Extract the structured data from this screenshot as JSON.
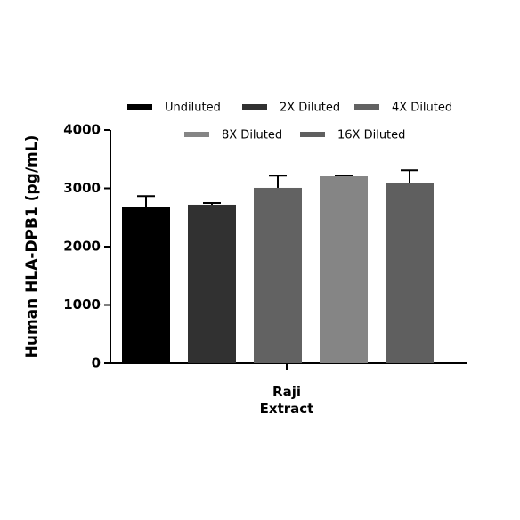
{
  "chart_data": {
    "type": "bar",
    "y_label": "Human HLA-DPB1 (pg/mL)",
    "categories": [
      "Raji\nExtract"
    ],
    "series": [
      {
        "name": "Undiluted",
        "color": "#000000",
        "values": [
          2687
        ],
        "errors": [
          180
        ]
      },
      {
        "name": "2X Diluted",
        "color": "#313131",
        "values": [
          2718
        ],
        "errors": [
          30
        ]
      },
      {
        "name": "4X Diluted",
        "color": "#626262",
        "values": [
          3008
        ],
        "errors": [
          210
        ]
      },
      {
        "name": "8X Diluted",
        "color": "#858585",
        "values": [
          3206
        ],
        "errors": [
          15
        ]
      },
      {
        "name": "16X Diluted",
        "color": "#5f5f5f",
        "values": [
          3099
        ],
        "errors": [
          210
        ]
      }
    ],
    "ylim": [
      0,
      4000
    ],
    "yticks": [
      0,
      1000,
      2000,
      3000,
      4000
    ],
    "grid": false,
    "legend": "top"
  }
}
